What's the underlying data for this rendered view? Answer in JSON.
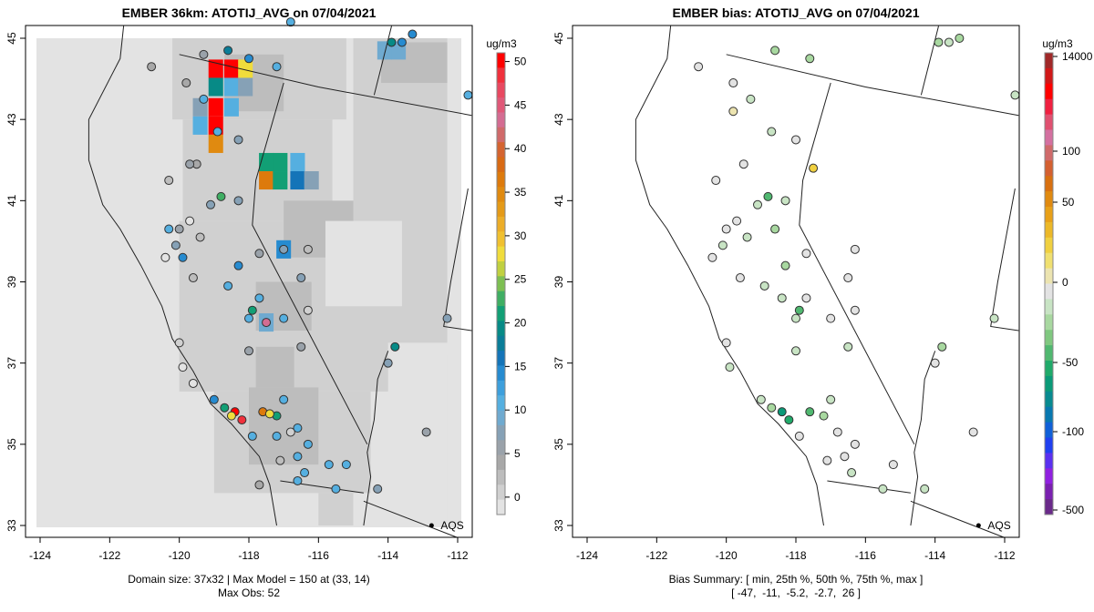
{
  "chart_data": [
    {
      "type": "heatmap",
      "title": "EMBER 36km: ATOTIJ_AVG on 07/04/2021",
      "units": "ug/m3",
      "xlim": [
        -124.4,
        -111.6
      ],
      "ylim": [
        32.7,
        45.3
      ],
      "x_ticks": [
        "-124",
        "-122",
        "-120",
        "-118",
        "-116",
        "-114",
        "-112"
      ],
      "x_tick_values": [
        -124,
        -122,
        -120,
        -118,
        -116,
        -114,
        -112
      ],
      "y_ticks": [
        "33",
        "35",
        "37",
        "39",
        "41",
        "43",
        "45"
      ],
      "y_tick_values": [
        33,
        35,
        37,
        39,
        41,
        43,
        45
      ],
      "colorbar": {
        "ticks": [
          "0",
          "5",
          "10",
          "15",
          "20",
          "25",
          "30",
          "35",
          "40",
          "45",
          "50"
        ],
        "tick_values": [
          0,
          5,
          10,
          15,
          20,
          25,
          30,
          35,
          40,
          45,
          50
        ],
        "range": [
          -2,
          51
        ],
        "colors": [
          "#e3e3e3",
          "#d0d0d0",
          "#bdbdbd",
          "#a8a8a8",
          "#9aa2aa",
          "#86a1b6",
          "#6faad0",
          "#55afe0",
          "#3d9fdc",
          "#268bd0",
          "#1474b8",
          "#0a7d98",
          "#078a86",
          "#129f75",
          "#3fae63",
          "#7dbf52",
          "#c0d040",
          "#f0dc3c",
          "#f0c030",
          "#ecad28",
          "#e49a18",
          "#e08a10",
          "#dd7a0c",
          "#d86a14",
          "#d46430",
          "#d06a6a",
          "#d46c92",
          "#e05878",
          "#e84860",
          "#f0303c",
          "#ff0000"
        ]
      },
      "annotations": {
        "footer_line1": "Domain size: 37x32 | Max Model = 150 at (33, 14)",
        "footer_line2": "Max Obs: 52",
        "legend_marker": "AQS"
      }
    },
    {
      "type": "scatter",
      "title": "EMBER bias: ATOTIJ_AVG on 07/04/2021",
      "units": "ug/m3",
      "xlim": [
        -124.4,
        -111.6
      ],
      "ylim": [
        32.7,
        45.3
      ],
      "x_ticks": [
        "-124",
        "-122",
        "-120",
        "-118",
        "-116",
        "-114",
        "-112"
      ],
      "x_tick_values": [
        -124,
        -122,
        -120,
        -118,
        -116,
        -114,
        -112
      ],
      "y_ticks": [
        "33",
        "35",
        "37",
        "39",
        "41",
        "43",
        "45"
      ],
      "y_tick_values": [
        33,
        35,
        37,
        39,
        41,
        43,
        45
      ],
      "colorbar": {
        "ticks": [
          "14000",
          "100",
          "50",
          "0",
          "-50",
          "-100",
          "-500"
        ],
        "colors": [
          "#6a2a8a",
          "#7a20b0",
          "#9020e0",
          "#5a30f0",
          "#2040f0",
          "#1060d8",
          "#0878b0",
          "#088a90",
          "#0a9a78",
          "#20aa6a",
          "#50b870",
          "#80c880",
          "#a8d8a0",
          "#c8e4c4",
          "#e3e3e3",
          "#ece4b0",
          "#f0e070",
          "#f0d040",
          "#ecb828",
          "#e8a018",
          "#e08a10",
          "#d87010",
          "#d46030",
          "#d06a6a",
          "#d470a0",
          "#e05070",
          "#f02040",
          "#ff0000",
          "#d01818",
          "#a02828"
        ]
      },
      "annotations": {
        "summary_label": "Bias Summary: [ min, 25th %, 50th %, 75th %, max ]",
        "summary_values": "[ -47,  -11,  -5.2,  -2.7,  26 ]",
        "summary": {
          "min": -47,
          "p25": -11,
          "p50": -5.2,
          "p75": -2.7,
          "max": 26
        },
        "legend_marker": "AQS"
      }
    }
  ],
  "grid_cells": [
    {
      "lon": -118.95,
      "lat": 44.25,
      "c": "#ff0000"
    },
    {
      "lon": -118.5,
      "lat": 44.25,
      "c": "#ff0000"
    },
    {
      "lon": -118.1,
      "lat": 44.25,
      "c": "#f0dc3c"
    },
    {
      "lon": -118.95,
      "lat": 43.8,
      "c": "#078a86"
    },
    {
      "lon": -118.5,
      "lat": 43.8,
      "c": "#55afe0"
    },
    {
      "lon": -118.1,
      "lat": 43.8,
      "c": "#86a1b6"
    },
    {
      "lon": -119.4,
      "lat": 43.3,
      "c": "#86a1b6"
    },
    {
      "lon": -118.95,
      "lat": 43.3,
      "c": "#ff0000"
    },
    {
      "lon": -118.5,
      "lat": 43.3,
      "c": "#55afe0"
    },
    {
      "lon": -119.4,
      "lat": 42.85,
      "c": "#55afe0"
    },
    {
      "lon": -118.95,
      "lat": 42.85,
      "c": "#ff0000"
    },
    {
      "lon": -118.95,
      "lat": 42.4,
      "c": "#e08a10"
    },
    {
      "lon": -117.5,
      "lat": 41.95,
      "c": "#129f75"
    },
    {
      "lon": -117.1,
      "lat": 41.95,
      "c": "#129f75"
    },
    {
      "lon": -116.6,
      "lat": 41.95,
      "c": "#55afe0"
    },
    {
      "lon": -117.5,
      "lat": 41.5,
      "c": "#dd7a0c"
    },
    {
      "lon": -117.1,
      "lat": 41.5,
      "c": "#129f75"
    },
    {
      "lon": -116.6,
      "lat": 41.5,
      "c": "#1474b8"
    },
    {
      "lon": -116.2,
      "lat": 41.5,
      "c": "#86a1b6"
    },
    {
      "lon": -117.0,
      "lat": 39.8,
      "c": "#268bd0"
    },
    {
      "lon": -117.5,
      "lat": 38.0,
      "c": "#6faad0"
    },
    {
      "lon": -113.7,
      "lat": 44.7,
      "c": "#6faad0"
    },
    {
      "lon": -114.1,
      "lat": 44.7,
      "c": "#6faad0"
    }
  ],
  "obs_points": [
    {
      "lon": -118.6,
      "lat": 44.7,
      "c": "#0a7d98"
    },
    {
      "lon": -118.0,
      "lat": 44.5,
      "c": "#268bd0"
    },
    {
      "lon": -119.3,
      "lat": 43.5,
      "c": "#55afe0"
    },
    {
      "lon": -118.9,
      "lat": 42.7,
      "c": "#55afe0"
    },
    {
      "lon": -118.3,
      "lat": 42.5,
      "c": "#86a1b6"
    },
    {
      "lon": -119.5,
      "lat": 41.9,
      "c": "#a8a8a8"
    },
    {
      "lon": -118.8,
      "lat": 41.1,
      "c": "#3fae63"
    },
    {
      "lon": -118.3,
      "lat": 41.0,
      "c": "#86a1b6"
    },
    {
      "lon": -116.8,
      "lat": 45.4,
      "c": "#55afe0"
    },
    {
      "lon": -117.2,
      "lat": 44.3,
      "c": "#55afe0"
    },
    {
      "lon": -113.9,
      "lat": 44.9,
      "c": "#078a86"
    },
    {
      "lon": -113.6,
      "lat": 44.9,
      "c": "#268bd0"
    },
    {
      "lon": -113.3,
      "lat": 45.1,
      "c": "#268bd0"
    },
    {
      "lon": -111.7,
      "lat": 43.6,
      "c": "#55afe0"
    },
    {
      "lon": -117.0,
      "lat": 39.8,
      "c": "#86a1b6"
    },
    {
      "lon": -118.3,
      "lat": 39.4,
      "c": "#268bd0"
    },
    {
      "lon": -118.6,
      "lat": 38.9,
      "c": "#55afe0"
    },
    {
      "lon": -117.7,
      "lat": 38.6,
      "c": "#55afe0"
    },
    {
      "lon": -117.9,
      "lat": 38.3,
      "c": "#129f75"
    },
    {
      "lon": -117.5,
      "lat": 38.0,
      "c": "#d46c92"
    },
    {
      "lon": -118.0,
      "lat": 38.1,
      "c": "#55afe0"
    },
    {
      "lon": -117.0,
      "lat": 38.1,
      "c": "#55afe0"
    },
    {
      "lon": -119.9,
      "lat": 39.6,
      "c": "#268bd0"
    },
    {
      "lon": -120.3,
      "lat": 40.3,
      "c": "#55afe0"
    },
    {
      "lon": -113.8,
      "lat": 37.4,
      "c": "#078a86"
    },
    {
      "lon": -114.0,
      "lat": 37.0,
      "c": "#86a1b6"
    },
    {
      "lon": -112.3,
      "lat": 38.1,
      "c": "#86a1b6"
    },
    {
      "lon": -118.4,
      "lat": 35.8,
      "c": "#ff0000"
    },
    {
      "lon": -118.2,
      "lat": 35.6,
      "c": "#f0303c"
    },
    {
      "lon": -117.6,
      "lat": 35.8,
      "c": "#dd7a0c"
    },
    {
      "lon": -117.2,
      "lat": 35.7,
      "c": "#129f75"
    },
    {
      "lon": -118.7,
      "lat": 35.9,
      "c": "#129f75"
    },
    {
      "lon": -117.4,
      "lat": 35.75,
      "c": "#f0dc3c"
    },
    {
      "lon": -118.5,
      "lat": 35.7,
      "c": "#f0dc3c"
    },
    {
      "lon": -119.0,
      "lat": 36.1,
      "c": "#268bd0"
    },
    {
      "lon": -117.0,
      "lat": 36.1,
      "c": "#55afe0"
    },
    {
      "lon": -116.6,
      "lat": 35.4,
      "c": "#55afe0"
    },
    {
      "lon": -117.9,
      "lat": 35.2,
      "c": "#55afe0"
    },
    {
      "lon": -117.2,
      "lat": 35.2,
      "c": "#55afe0"
    },
    {
      "lon": -116.3,
      "lat": 35.0,
      "c": "#55afe0"
    },
    {
      "lon": -116.6,
      "lat": 34.7,
      "c": "#55afe0"
    },
    {
      "lon": -115.7,
      "lat": 34.5,
      "c": "#55afe0"
    },
    {
      "lon": -116.6,
      "lat": 34.1,
      "c": "#55afe0"
    },
    {
      "lon": -116.4,
      "lat": 34.3,
      "c": "#55afe0"
    },
    {
      "lon": -115.5,
      "lat": 33.9,
      "c": "#55afe0"
    },
    {
      "lon": -115.2,
      "lat": 34.5,
      "c": "#55afe0"
    },
    {
      "lon": -112.9,
      "lat": 35.3,
      "c": "#9aa2aa"
    },
    {
      "lon": -114.3,
      "lat": 33.9,
      "c": "#86a1b6"
    },
    {
      "lon": -119.8,
      "lat": 43.9,
      "c": "#a8a8a8"
    },
    {
      "lon": -119.3,
      "lat": 44.6,
      "c": "#9aa2aa"
    },
    {
      "lon": -120.8,
      "lat": 44.3,
      "c": "#a8a8a8"
    },
    {
      "lon": -120.3,
      "lat": 41.5,
      "c": "#bdbdbd"
    },
    {
      "lon": -119.7,
      "lat": 41.9,
      "c": "#9aa2aa"
    },
    {
      "lon": -119.1,
      "lat": 40.9,
      "c": "#86a1b6"
    },
    {
      "lon": -119.7,
      "lat": 40.5,
      "c": "#e3e3e3"
    },
    {
      "lon": -120.0,
      "lat": 40.3,
      "c": "#9aa2aa"
    },
    {
      "lon": -119.4,
      "lat": 40.1,
      "c": "#bdbdbd"
    },
    {
      "lon": -120.1,
      "lat": 39.9,
      "c": "#86a1b6"
    },
    {
      "lon": -120.4,
      "lat": 39.6,
      "c": "#e3e3e3"
    },
    {
      "lon": -119.6,
      "lat": 39.1,
      "c": "#bdbdbd"
    },
    {
      "lon": -117.7,
      "lat": 39.7,
      "c": "#9aa2aa"
    },
    {
      "lon": -116.3,
      "lat": 39.8,
      "c": "#bdbdbd"
    },
    {
      "lon": -116.5,
      "lat": 39.1,
      "c": "#86a1b6"
    },
    {
      "lon": -116.3,
      "lat": 38.3,
      "c": "#d0d0d0"
    },
    {
      "lon": -118.0,
      "lat": 37.3,
      "c": "#9aa2aa"
    },
    {
      "lon": -116.5,
      "lat": 37.4,
      "c": "#9aa2aa"
    },
    {
      "lon": -119.9,
      "lat": 36.9,
      "c": "#e3e3e3"
    },
    {
      "lon": -120.0,
      "lat": 37.5,
      "c": "#d0d0d0"
    },
    {
      "lon": -119.6,
      "lat": 36.5,
      "c": "#e3e3e3"
    },
    {
      "lon": -117.1,
      "lat": 34.6,
      "c": "#bdbdbd"
    },
    {
      "lon": -117.7,
      "lat": 34.0,
      "c": "#a8a8a8"
    },
    {
      "lon": -116.8,
      "lat": 35.3,
      "c": "#d0d0d0"
    }
  ],
  "bias_points": [
    {
      "lon": -118.6,
      "lat": 44.7,
      "c": "#a8d8a0"
    },
    {
      "lon": -117.6,
      "lat": 44.5,
      "c": "#a8d8a0"
    },
    {
      "lon": -119.3,
      "lat": 43.5,
      "c": "#c8e4c4"
    },
    {
      "lon": -118.0,
      "lat": 42.5,
      "c": "#e3e3e3"
    },
    {
      "lon": -119.5,
      "lat": 41.9,
      "c": "#e3e3e3"
    },
    {
      "lon": -118.8,
      "lat": 41.1,
      "c": "#50b870"
    },
    {
      "lon": -118.3,
      "lat": 41.0,
      "c": "#c8e4c4"
    },
    {
      "lon": -117.5,
      "lat": 41.8,
      "c": "#f0d040"
    },
    {
      "lon": -119.8,
      "lat": 43.2,
      "c": "#ece4b0"
    },
    {
      "lon": -118.7,
      "lat": 42.7,
      "c": "#c8e4c4"
    },
    {
      "lon": -120.3,
      "lat": 41.5,
      "c": "#e3e3e3"
    },
    {
      "lon": -119.1,
      "lat": 40.9,
      "c": "#c8e4c4"
    },
    {
      "lon": -118.6,
      "lat": 40.3,
      "c": "#a8d8a0"
    },
    {
      "lon": -118.3,
      "lat": 39.4,
      "c": "#a8d8a0"
    },
    {
      "lon": -117.9,
      "lat": 38.3,
      "c": "#50b870"
    },
    {
      "lon": -118.4,
      "lat": 38.6,
      "c": "#c8e4c4"
    },
    {
      "lon": -118.0,
      "lat": 38.1,
      "c": "#c8e4c4"
    },
    {
      "lon": -113.8,
      "lat": 37.4,
      "c": "#a8d8a0"
    },
    {
      "lon": -113.9,
      "lat": 44.9,
      "c": "#a8d8a0"
    },
    {
      "lon": -113.6,
      "lat": 44.9,
      "c": "#c8e4c4"
    },
    {
      "lon": -113.3,
      "lat": 45.0,
      "c": "#a8d8a0"
    },
    {
      "lon": -111.7,
      "lat": 43.6,
      "c": "#c8e4c4"
    },
    {
      "lon": -118.4,
      "lat": 35.8,
      "c": "#0a9a78"
    },
    {
      "lon": -118.2,
      "lat": 35.6,
      "c": "#20aa6a"
    },
    {
      "lon": -117.6,
      "lat": 35.8,
      "c": "#50b870"
    },
    {
      "lon": -117.2,
      "lat": 35.7,
      "c": "#a8d8a0"
    },
    {
      "lon": -118.7,
      "lat": 35.9,
      "c": "#a8d8a0"
    },
    {
      "lon": -119.0,
      "lat": 36.1,
      "c": "#c8e4c4"
    },
    {
      "lon": -117.0,
      "lat": 36.1,
      "c": "#c8e4c4"
    },
    {
      "lon": -116.6,
      "lat": 34.7,
      "c": "#e3e3e3"
    },
    {
      "lon": -116.4,
      "lat": 34.3,
      "c": "#c8e4c4"
    },
    {
      "lon": -115.5,
      "lat": 33.9,
      "c": "#c8e4c4"
    },
    {
      "lon": -114.3,
      "lat": 33.9,
      "c": "#c8e4c4"
    },
    {
      "lon": -112.9,
      "lat": 35.3,
      "c": "#e3e3e3"
    },
    {
      "lon": -112.3,
      "lat": 38.1,
      "c": "#c8e4c4"
    },
    {
      "lon": -119.8,
      "lat": 43.9,
      "c": "#e3e3e3"
    },
    {
      "lon": -120.8,
      "lat": 44.3,
      "c": "#e3e3e3"
    },
    {
      "lon": -119.7,
      "lat": 40.5,
      "c": "#e3e3e3"
    },
    {
      "lon": -120.0,
      "lat": 40.3,
      "c": "#e3e3e3"
    },
    {
      "lon": -119.4,
      "lat": 40.1,
      "c": "#c8e4c4"
    },
    {
      "lon": -120.1,
      "lat": 39.9,
      "c": "#c8e4c4"
    },
    {
      "lon": -120.4,
      "lat": 39.6,
      "c": "#e3e3e3"
    },
    {
      "lon": -119.6,
      "lat": 39.1,
      "c": "#e3e3e3"
    },
    {
      "lon": -117.7,
      "lat": 39.7,
      "c": "#e3e3e3"
    },
    {
      "lon": -116.3,
      "lat": 39.8,
      "c": "#e3e3e3"
    },
    {
      "lon": -116.5,
      "lat": 39.1,
      "c": "#e3e3e3"
    },
    {
      "lon": -116.3,
      "lat": 38.3,
      "c": "#e3e3e3"
    },
    {
      "lon": -118.0,
      "lat": 37.3,
      "c": "#c8e4c4"
    },
    {
      "lon": -116.5,
      "lat": 37.4,
      "c": "#c8e4c4"
    },
    {
      "lon": -119.9,
      "lat": 36.9,
      "c": "#c8e4c4"
    },
    {
      "lon": -120.0,
      "lat": 37.5,
      "c": "#e3e3e3"
    },
    {
      "lon": -117.1,
      "lat": 34.6,
      "c": "#e3e3e3"
    },
    {
      "lon": -116.8,
      "lat": 35.3,
      "c": "#e3e3e3"
    },
    {
      "lon": -117.9,
      "lat": 35.2,
      "c": "#e3e3e3"
    },
    {
      "lon": -116.3,
      "lat": 35.0,
      "c": "#e3e3e3"
    },
    {
      "lon": -115.2,
      "lat": 34.5,
      "c": "#e3e3e3"
    },
    {
      "lon": -114.0,
      "lat": 37.0,
      "c": "#e3e3e3"
    },
    {
      "lon": -118.9,
      "lat": 38.9,
      "c": "#c8e4c4"
    },
    {
      "lon": -117.7,
      "lat": 38.6,
      "c": "#e3e3e3"
    },
    {
      "lon": -117.0,
      "lat": 38.1,
      "c": "#e3e3e3"
    }
  ],
  "aqs_marker": {
    "lon": -112.75,
    "lat": 33.0,
    "label": "AQS"
  }
}
